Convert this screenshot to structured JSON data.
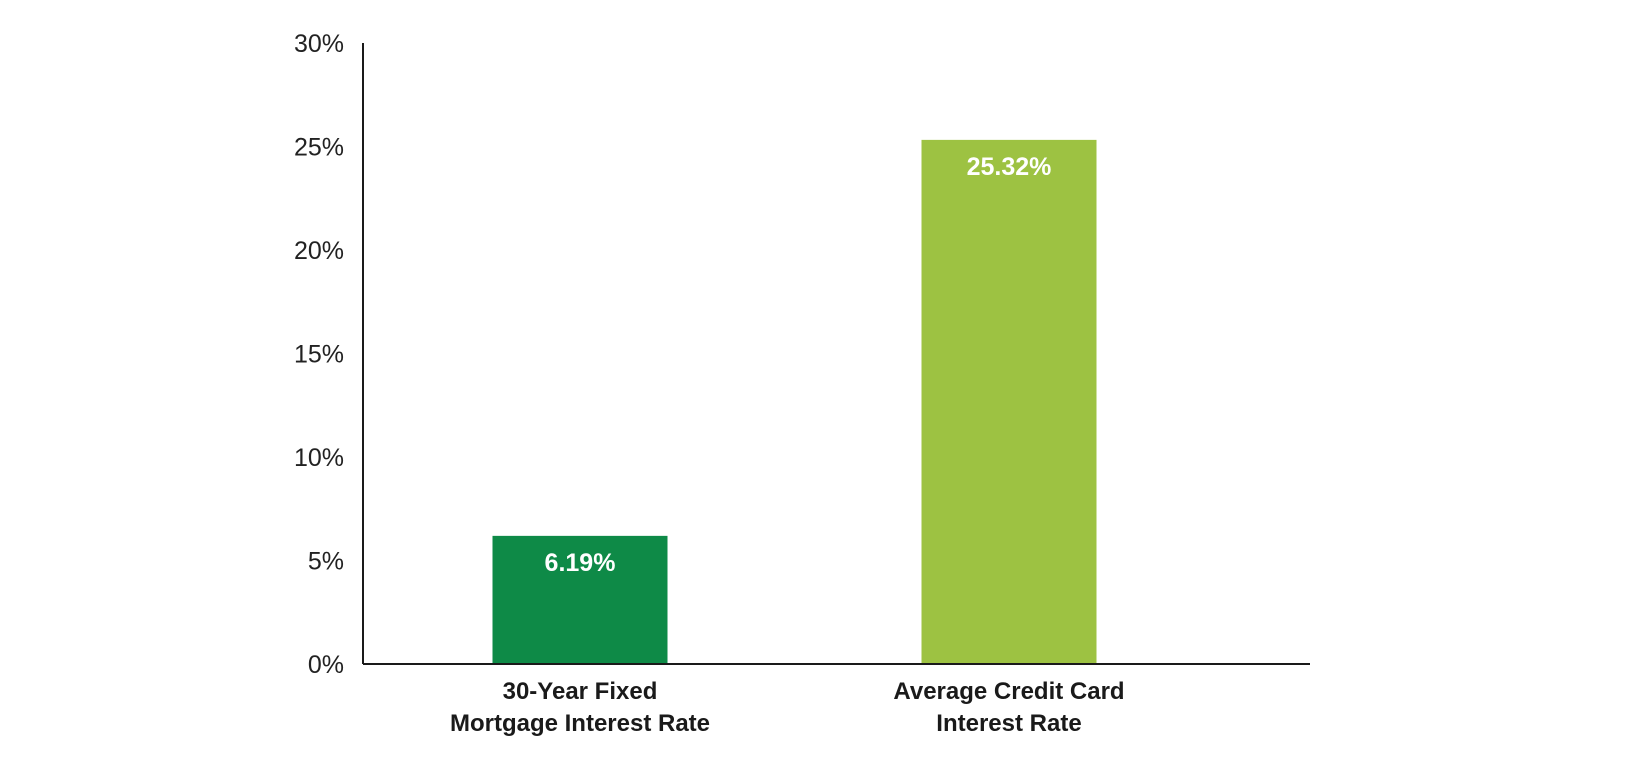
{
  "chart_data": {
    "type": "bar",
    "categories": [
      [
        "30-Year Fixed",
        "Mortgage Interest Rate"
      ],
      [
        "Average Credit Card",
        "Interest Rate"
      ]
    ],
    "values": [
      6.19,
      25.32
    ],
    "value_labels": [
      "6.19%",
      "25.32%"
    ],
    "bar_colors": [
      "#0e8a47",
      "#9dc242"
    ],
    "title": "",
    "xlabel": "",
    "ylabel": "",
    "ylim": [
      0,
      30
    ],
    "yticks": [
      0,
      5,
      10,
      15,
      20,
      25,
      30
    ],
    "ytick_labels": [
      "0%",
      "5%",
      "10%",
      "15%",
      "20%",
      "25%",
      "30%"
    ],
    "grid": false,
    "legend": "none"
  }
}
